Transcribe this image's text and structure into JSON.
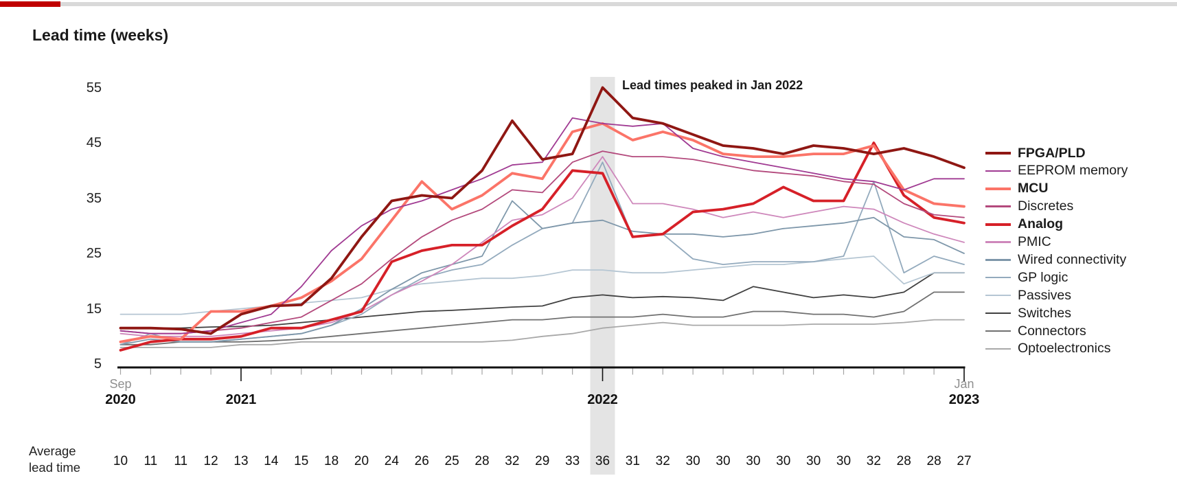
{
  "top_bar": {
    "red_color": "#c00000",
    "gray_color": "#d9d9d9"
  },
  "title": "Lead time (weeks)",
  "annotation": "Lead times peaked in Jan 2022",
  "chart_data": {
    "type": "line",
    "title": "Lead time (weeks)",
    "ylabel": "Lead time (weeks)",
    "ylim": [
      5,
      57
    ],
    "yticks": [
      55,
      45,
      35,
      25,
      15,
      5
    ],
    "grid": false,
    "legend_position": "right",
    "x": [
      "Sep 2020",
      "Oct 2020",
      "Nov 2020",
      "Dec 2020",
      "Jan 2021",
      "Feb 2021",
      "Mar 2021",
      "Apr 2021",
      "May 2021",
      "Jun 2021",
      "Jul 2021",
      "Aug 2021",
      "Sep 2021",
      "Oct 2021",
      "Nov 2021",
      "Dec 2021",
      "Jan 2022",
      "Feb 2022",
      "Mar 2022",
      "Apr 2022",
      "May 2022",
      "Jun 2022",
      "Jul 2022",
      "Aug 2022",
      "Sep 2022",
      "Oct 2022",
      "Nov 2022",
      "Dec 2022",
      "Jan 2023"
    ],
    "x_axis_labels": [
      {
        "index": 0,
        "top": "Sep",
        "bottom": "2020"
      },
      {
        "index": 4,
        "top": "",
        "bottom": "2021"
      },
      {
        "index": 16,
        "top": "",
        "bottom": "2022"
      },
      {
        "index": 28,
        "top": "Jan",
        "bottom": "2023"
      }
    ],
    "highlight_band": {
      "index": 16,
      "color": "#e4e4e4",
      "note": "Lead times peaked in Jan 2022"
    },
    "series": [
      {
        "name": "FPGA/PLD",
        "color": "#8f1713",
        "bold": true,
        "values": [
          11.5,
          11.5,
          11.3,
          10.5,
          14,
          15.5,
          15.7,
          20.5,
          28,
          34.5,
          35.5,
          35,
          40,
          49,
          42,
          43,
          55,
          49.5,
          48.5,
          46.5,
          44.5,
          44,
          43,
          44.5,
          44,
          43,
          44,
          42.5,
          40.5
        ]
      },
      {
        "name": "EEPROM memory",
        "color": "#a03a92",
        "bold": false,
        "values": [
          11,
          10.5,
          10.5,
          11,
          12.5,
          14,
          19,
          25.5,
          30,
          33,
          34.5,
          36.5,
          38.5,
          41,
          41.5,
          49.5,
          48.5,
          48,
          48.5,
          44,
          42.5,
          41.5,
          40.5,
          39.5,
          38.5,
          38,
          36.5,
          38.5,
          38.5
        ]
      },
      {
        "name": "MCU",
        "color": "#fb7468",
        "bold": true,
        "values": [
          9,
          10,
          9.5,
          14.5,
          14.5,
          15.5,
          17,
          20,
          24,
          31,
          38,
          33,
          35.5,
          39.5,
          38.5,
          47,
          48.5,
          45.5,
          47,
          45.5,
          43,
          42.5,
          42.5,
          43,
          43,
          44.5,
          36.5,
          34,
          33.5
        ]
      },
      {
        "name": "Discretes",
        "color": "#b3497c",
        "bold": false,
        "values": [
          11,
          10.5,
          10.5,
          11,
          11.5,
          12.5,
          13.5,
          16.5,
          19.5,
          24,
          28,
          31,
          33,
          36.5,
          36,
          41.5,
          43.5,
          42.5,
          42.5,
          42,
          41,
          40,
          39.5,
          39,
          38,
          37.5,
          34,
          32,
          31.5
        ]
      },
      {
        "name": "Analog",
        "color": "#d62028",
        "bold": true,
        "values": [
          7.5,
          9,
          9.5,
          9.5,
          10,
          11.5,
          11.5,
          13,
          14.5,
          23.5,
          25.5,
          26.5,
          26.5,
          30,
          33,
          40,
          39.5,
          28,
          28.5,
          32.5,
          33,
          34,
          37,
          34.5,
          34.5,
          45,
          35.5,
          31.5,
          30.5
        ]
      },
      {
        "name": "PMIC",
        "color": "#ce87bb",
        "bold": false,
        "values": [
          10.5,
          10,
          10,
          10,
          10.5,
          11,
          11.5,
          12.5,
          14.5,
          17.5,
          20,
          23,
          27,
          31,
          32,
          35,
          42.5,
          34,
          34,
          33,
          31.5,
          32.5,
          31.5,
          32.5,
          33.5,
          33,
          30.5,
          28.5,
          27
        ]
      },
      {
        "name": "Wired connectivity",
        "color": "#7e97aa",
        "bold": false,
        "values": [
          8.5,
          9.5,
          9,
          9,
          9.5,
          10,
          10.5,
          12,
          15,
          18.5,
          21.5,
          23,
          24.5,
          34.5,
          29.5,
          30.5,
          31,
          29,
          28.5,
          28.5,
          28,
          28.5,
          29.5,
          30,
          30.5,
          31.5,
          28,
          27.5,
          25
        ]
      },
      {
        "name": "GP logic",
        "color": "#93aabd",
        "bold": false,
        "values": [
          8.5,
          10.5,
          9,
          9,
          9.5,
          10,
          10.5,
          12,
          14,
          17.5,
          20.5,
          22,
          23,
          26.5,
          29.5,
          30.5,
          41.5,
          28,
          28.5,
          24,
          23,
          23.5,
          23.5,
          23.5,
          24.5,
          38,
          21.5,
          24.5,
          23
        ]
      },
      {
        "name": "Passives",
        "color": "#b5c6d3",
        "bold": false,
        "values": [
          14,
          14,
          14,
          14.5,
          15,
          15.5,
          16,
          16.5,
          17,
          18.5,
          19.5,
          20,
          20.5,
          20.5,
          21,
          22,
          22,
          21.5,
          21.5,
          22,
          22.5,
          23,
          23,
          23.5,
          24,
          24.5,
          19.5,
          21.5,
          21.5
        ]
      },
      {
        "name": "Switches",
        "color": "#404040",
        "bold": false,
        "values": [
          11.5,
          11.5,
          11.5,
          11.7,
          11.8,
          12,
          12.5,
          13,
          13.5,
          14,
          14.5,
          14.7,
          15,
          15.3,
          15.5,
          17,
          17.5,
          17,
          17.2,
          17,
          16.5,
          19,
          18,
          17,
          17.5,
          17,
          18,
          21.5,
          21.5
        ]
      },
      {
        "name": "Connectors",
        "color": "#707070",
        "bold": false,
        "values": [
          8.5,
          8.5,
          9,
          9,
          9,
          9.2,
          9.5,
          10,
          10.5,
          11,
          11.5,
          12,
          12.5,
          13,
          13,
          13.5,
          13.5,
          13.5,
          14,
          13.5,
          13.5,
          14.5,
          14.5,
          14,
          14,
          13.5,
          14.5,
          18,
          18
        ]
      },
      {
        "name": "Optoelectronics",
        "color": "#a8a8a8",
        "bold": false,
        "values": [
          8,
          8,
          8,
          8,
          8.5,
          8.5,
          9,
          9,
          9,
          9,
          9,
          9,
          9,
          9.3,
          10,
          10.5,
          11.5,
          12,
          12.5,
          12,
          12,
          12,
          12,
          12.2,
          12.2,
          12.2,
          12.5,
          13,
          13
        ]
      }
    ],
    "average_lead_time": {
      "label_line1": "Average",
      "label_line2": "lead time",
      "values": [
        10,
        11,
        11,
        12,
        13,
        14,
        15,
        18,
        20,
        24,
        26,
        25,
        28,
        32,
        29,
        33,
        36,
        31,
        32,
        30,
        30,
        30,
        30,
        30,
        30,
        32,
        28,
        28,
        27
      ]
    },
    "axis": {
      "major_tick_indices": [
        4,
        16,
        28
      ]
    }
  }
}
